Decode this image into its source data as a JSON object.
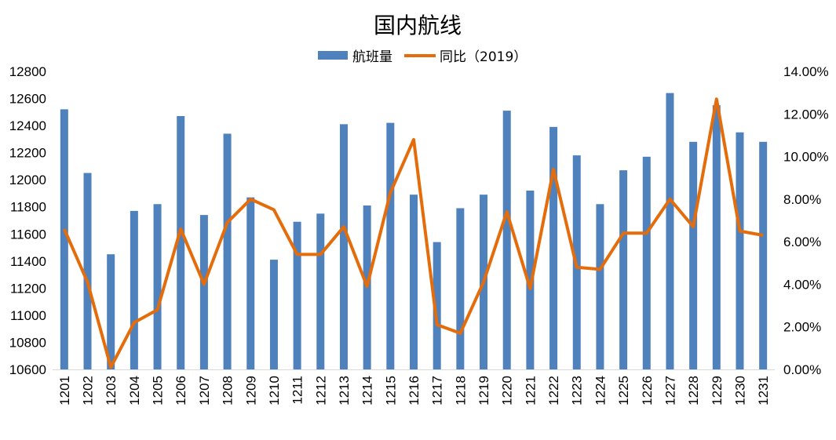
{
  "chart_data": {
    "type": "bar+line",
    "title": "国内航线",
    "legend": {
      "placement": "top-center",
      "entries": [
        "航班量",
        "同比（2019）"
      ]
    },
    "colors": {
      "bar": "#4F81BD",
      "line": "#E46C0A"
    },
    "categories": [
      "1201",
      "1202",
      "1203",
      "1204",
      "1205",
      "1206",
      "1207",
      "1208",
      "1209",
      "1210",
      "1211",
      "1212",
      "1213",
      "1214",
      "1215",
      "1216",
      "1217",
      "1218",
      "1219",
      "1220",
      "1221",
      "1222",
      "1223",
      "1224",
      "1225",
      "1226",
      "1227",
      "1228",
      "1229",
      "1230",
      "1231"
    ],
    "series": [
      {
        "name": "航班量",
        "type": "bar",
        "axis": "left",
        "values": [
          12520,
          12050,
          11450,
          11770,
          11820,
          12470,
          11740,
          12340,
          11870,
          11410,
          11690,
          11750,
          12410,
          11810,
          12420,
          11890,
          11540,
          11790,
          11890,
          12510,
          11920,
          12390,
          12180,
          11820,
          12070,
          12170,
          12640,
          12280,
          12550,
          12350,
          12280
        ]
      },
      {
        "name": "同比（2019）",
        "type": "line",
        "axis": "right",
        "values": [
          6.6,
          4.1,
          0.1,
          2.2,
          2.8,
          6.6,
          4.0,
          6.9,
          8.0,
          7.5,
          5.4,
          5.4,
          6.7,
          3.9,
          8.3,
          10.8,
          2.1,
          1.7,
          4.1,
          7.4,
          3.8,
          9.4,
          4.8,
          4.7,
          6.4,
          6.4,
          8.0,
          6.7,
          12.7,
          6.5,
          6.3
        ]
      }
    ],
    "y_left": {
      "min": 10600,
      "max": 12800,
      "step": 200,
      "ticks": [
        "10600",
        "10800",
        "11000",
        "11200",
        "11400",
        "11600",
        "11800",
        "12000",
        "12200",
        "12400",
        "12600",
        "12800"
      ]
    },
    "y_right": {
      "min": 0,
      "max": 14,
      "step": 2,
      "ticks": [
        "0.00%",
        "2.00%",
        "4.00%",
        "6.00%",
        "8.00%",
        "10.00%",
        "12.00%",
        "14.00%"
      ]
    },
    "grid": false
  }
}
